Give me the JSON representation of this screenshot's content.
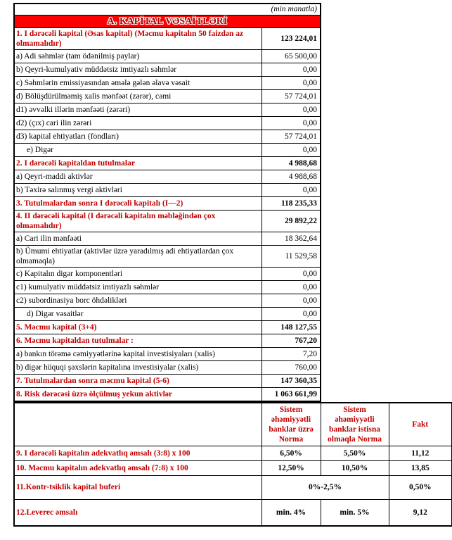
{
  "unit_note": "(min manatla)",
  "section_title": "A. KAPİTAL VƏSAİTLƏRİ",
  "colors": {
    "title_bar_bg": "#fe0000",
    "red_text": "#c00000",
    "border": "#000000"
  },
  "capital_table": {
    "rows": [
      {
        "label": "1. I dərəcəli kapital (Əsas kapital) (Məcmu kapitalın 50 faizdən az olmamalıdır)",
        "value": "123 224,01",
        "bold": true
      },
      {
        "label": "a) Adi səhmlər (tam ödənilmiş paylar)",
        "value": "65 500,00"
      },
      {
        "label": "b) Qeyri-kumulyativ müddətsiz imtiyazlı səhmlər",
        "value": "0,00"
      },
      {
        "label": "c) Səhmlərin emissiyasından əmələ gələn əlavə vəsait",
        "value": "0,00"
      },
      {
        "label": "d)  Bölüşdürülməmiş xalis mənfəət (zərər), cəmi",
        "value": "57 724,01"
      },
      {
        "label": "d1) əvvəlki illərin mənfəəti (zərəri)",
        "value": "0,00"
      },
      {
        "label": "d2) (çıx) cari ilin zərəri",
        "value": "0,00"
      },
      {
        "label": "d3) kapital ehtiyatları (fondları)",
        "value": "57 724,01"
      },
      {
        "label": "e) Digər",
        "value": "0,00",
        "indent": true
      },
      {
        "label": "2. I dərəcəli kapitaldan tutulmalar",
        "value": "4 988,68",
        "bold": true
      },
      {
        "label": "a) Qeyri-maddi aktivlər",
        "value": "4 988,68"
      },
      {
        "label": "b) Təxirə salınmış vergi aktivləri",
        "value": "0,00"
      },
      {
        "label": "3. Tutulmalardan sonra I dərəcəli kapitalı (I—2)",
        "value": "118 235,33",
        "bold": true
      },
      {
        "label": "4. II dərəcəli kapital (I dərəcəli kapitalın məbləğindən çox olmamalıdır)",
        "value": "29 892,22",
        "bold": true
      },
      {
        "label": "a) Cari ilin mənfəəti",
        "value": "18 362,64"
      },
      {
        "label": "b) Ümumi ehtiyatlar (aktivlər üzrə yaradılmış adi ehtiyatlardan çox olmamaqla)",
        "value": "11 529,58"
      },
      {
        "label": "c)  Kapitalın digər komponentləri",
        "value": "0,00"
      },
      {
        "label": "c1) kumulyativ müddətsiz imtiyazlı səhmlər",
        "value": "0,00"
      },
      {
        "label": "c2) subordinasiya borc öhdəlikləri",
        "value": "0,00"
      },
      {
        "label": "d) Digər vəsaitlər",
        "value": "0,00",
        "indent": true
      },
      {
        "label": "5. Məcmu kapital (3+4)",
        "value": "148 127,55",
        "bold": true
      },
      {
        "label": "6. Məcmu kapitaldan tutulmalar :",
        "value": "767,20",
        "bold": true
      },
      {
        "label": "a)  bankın törəmə cəmiyyətlərinə kapital investisiyaları (xalis)",
        "value": "7,20"
      },
      {
        "label": "b)  digər hüquqi şəxslərin kapitalına investisiyalar (xalis)",
        "value": "760,00"
      },
      {
        "label": "7. Tutulmalardan sonra məcmu kapital (5-6)",
        "value": "147 360,35",
        "bold": true
      },
      {
        "label": "8. Risk dərəcəsi üzrə ölçülmuş yekun aktivlər",
        "value": "1 063 661,99",
        "bold": true
      }
    ]
  },
  "ratio_table": {
    "col_headers": [
      "Sistem əhəmiyyətli banklar üzrə Norma",
      "Sistem əhəmiyyətli banklar istisna olmaqla Norma",
      "Fakt"
    ],
    "rows": [
      {
        "label": "9.  I dərəcəli kapitalın adekvatlıq əmsalı (3:8) x 100",
        "cells": [
          "6,50%",
          "5,50%",
          "11,12"
        ]
      },
      {
        "label": "10. Məcmu kapitalın adekvatlıq əmsalı (7:8) x 100",
        "cells": [
          "12,50%",
          "10,50%",
          "13,85"
        ]
      },
      {
        "label": "11.Kontr-tsiklik kapital buferi",
        "cells": [
          "0%-2,5%",
          "0,50%"
        ],
        "merge_first_two": true
      },
      {
        "label": "12.Leverec əmsalı",
        "cells": [
          "min. 4%",
          "min. 5%",
          "9,12"
        ]
      }
    ]
  }
}
